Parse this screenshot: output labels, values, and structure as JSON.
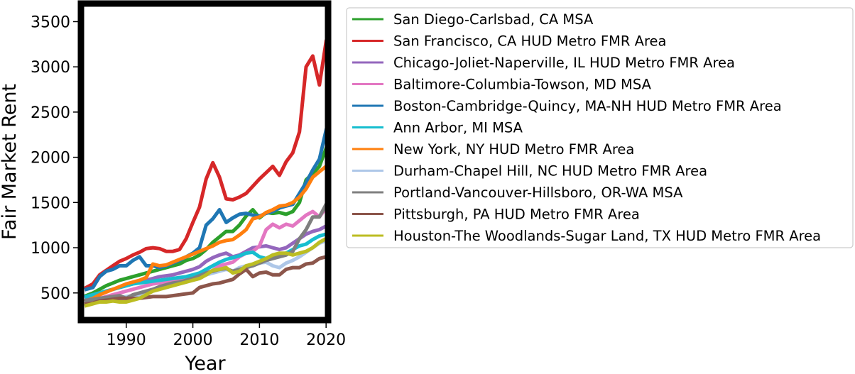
{
  "chart_data": {
    "type": "line",
    "title": "",
    "xlabel": "Year",
    "ylabel": "Fair Market Rent",
    "xlim": [
      1983.2,
      2020.3
    ],
    "ylim": [
      200,
      3700
    ],
    "xticks": [
      1990,
      2000,
      2010,
      2020
    ],
    "yticks": [
      500,
      1000,
      1500,
      2000,
      2500,
      3000,
      3500
    ],
    "grid": false,
    "legend_position": "outside-right",
    "x": [
      1984,
      1985,
      1986,
      1987,
      1988,
      1989,
      1990,
      1991,
      1992,
      1993,
      1994,
      1995,
      1996,
      1997,
      1998,
      1999,
      2000,
      2001,
      2002,
      2003,
      2004,
      2005,
      2006,
      2007,
      2008,
      2009,
      2010,
      2011,
      2012,
      2013,
      2014,
      2015,
      2016,
      2017,
      2018,
      2019,
      2020
    ],
    "series": [
      {
        "name": "San Diego-Carlsbad, CA MSA",
        "color": "#2ca02c",
        "values": [
          470,
          500,
          540,
          580,
          610,
          640,
          660,
          680,
          700,
          720,
          740,
          760,
          780,
          800,
          820,
          860,
          880,
          920,
          980,
          1060,
          1120,
          1180,
          1180,
          1250,
          1350,
          1420,
          1330,
          1390,
          1380,
          1390,
          1370,
          1400,
          1500,
          1750,
          1820,
          1900,
          2100
        ]
      },
      {
        "name": "San Francisco, CA HUD Metro FMR Area",
        "color": "#d62728",
        "values": [
          560,
          600,
          700,
          750,
          800,
          850,
          880,
          920,
          950,
          990,
          1000,
          990,
          960,
          960,
          980,
          1100,
          1280,
          1450,
          1760,
          1940,
          1780,
          1540,
          1530,
          1560,
          1600,
          1680,
          1760,
          1830,
          1900,
          1800,
          1950,
          2050,
          2280,
          3000,
          3120,
          2800,
          3280
        ]
      },
      {
        "name": "Chicago-Joliet-Naperville, IL HUD Metro FMR Area",
        "color": "#9467bd",
        "values": [
          450,
          480,
          500,
          520,
          540,
          560,
          580,
          600,
          620,
          640,
          660,
          680,
          690,
          700,
          720,
          740,
          760,
          790,
          850,
          890,
          920,
          940,
          900,
          920,
          960,
          1000,
          1010,
          1020,
          1000,
          980,
          1000,
          1050,
          1100,
          1150,
          1180,
          1200,
          1240
        ]
      },
      {
        "name": "Baltimore-Columbia-Towson, MD MSA",
        "color": "#e377c2",
        "values": [
          400,
          420,
          440,
          460,
          480,
          500,
          520,
          540,
          560,
          580,
          600,
          610,
          620,
          640,
          650,
          660,
          680,
          700,
          720,
          750,
          800,
          820,
          840,
          900,
          940,
          960,
          1020,
          1200,
          1260,
          1220,
          1260,
          1240,
          1300,
          1360,
          1400,
          1340,
          1440
        ]
      },
      {
        "name": "Boston-Cambridge-Quincy, MA-NH HUD Metro FMR Area",
        "color": "#1f77b4",
        "values": [
          540,
          560,
          680,
          740,
          760,
          800,
          800,
          860,
          900,
          800,
          800,
          780,
          800,
          830,
          860,
          900,
          940,
          1000,
          1250,
          1320,
          1420,
          1280,
          1330,
          1370,
          1380,
          1360,
          1350,
          1380,
          1400,
          1440,
          1460,
          1480,
          1600,
          1720,
          1860,
          1980,
          2300
        ]
      },
      {
        "name": "Ann Arbor, MI MSA",
        "color": "#17becf",
        "values": [
          460,
          480,
          500,
          520,
          540,
          560,
          580,
          600,
          610,
          620,
          630,
          640,
          650,
          660,
          670,
          680,
          700,
          720,
          760,
          800,
          840,
          870,
          890,
          910,
          940,
          950,
          900,
          880,
          920,
          930,
          940,
          980,
          1020,
          1040,
          1090,
          1130,
          1150
        ]
      },
      {
        "name": "New York, NY HUD Metro FMR Area",
        "color": "#ff7f0e",
        "values": [
          410,
          440,
          480,
          510,
          540,
          570,
          600,
          620,
          640,
          670,
          820,
          800,
          810,
          840,
          870,
          900,
          930,
          960,
          990,
          1020,
          1060,
          1080,
          1090,
          1140,
          1200,
          1320,
          1340,
          1390,
          1420,
          1460,
          1470,
          1500,
          1560,
          1650,
          1780,
          1840,
          1900
        ]
      },
      {
        "name": "Durham-Chapel Hill, NC HUD Metro FMR Area",
        "color": "#aec7e8",
        "values": [
          400,
          410,
          420,
          430,
          440,
          450,
          460,
          470,
          480,
          500,
          520,
          540,
          560,
          580,
          600,
          620,
          640,
          660,
          700,
          720,
          740,
          760,
          740,
          780,
          800,
          820,
          830,
          840,
          800,
          780,
          830,
          860,
          900,
          950,
          1000,
          1050,
          1080
        ]
      },
      {
        "name": "Portland-Vancouver-Hillsboro, OR-WA MSA",
        "color": "#7f7f7f",
        "values": [
          420,
          430,
          440,
          450,
          460,
          470,
          440,
          480,
          500,
          520,
          540,
          570,
          590,
          610,
          620,
          640,
          660,
          690,
          720,
          740,
          760,
          770,
          740,
          760,
          780,
          800,
          830,
          860,
          880,
          900,
          920,
          960,
          1100,
          1200,
          1340,
          1340,
          1480
        ]
      },
      {
        "name": "Pittsburgh, PA HUD Metro FMR Area",
        "color": "#8c564b",
        "values": [
          380,
          390,
          410,
          420,
          430,
          440,
          440,
          440,
          440,
          450,
          460,
          460,
          460,
          470,
          480,
          490,
          500,
          560,
          580,
          600,
          610,
          630,
          650,
          710,
          760,
          680,
          720,
          730,
          700,
          700,
          760,
          780,
          780,
          820,
          830,
          880,
          900
        ]
      },
      {
        "name": "Houston-The Woodlands-Sugar Land, TX HUD Metro FMR Area",
        "color": "#bcbd22",
        "values": [
          360,
          380,
          400,
          400,
          410,
          400,
          400,
          420,
          440,
          480,
          520,
          540,
          560,
          580,
          600,
          620,
          640,
          660,
          700,
          750,
          760,
          780,
          720,
          740,
          800,
          820,
          850,
          880,
          920,
          940,
          940,
          920,
          940,
          960,
          1000,
          1060,
          1100
        ]
      }
    ]
  }
}
